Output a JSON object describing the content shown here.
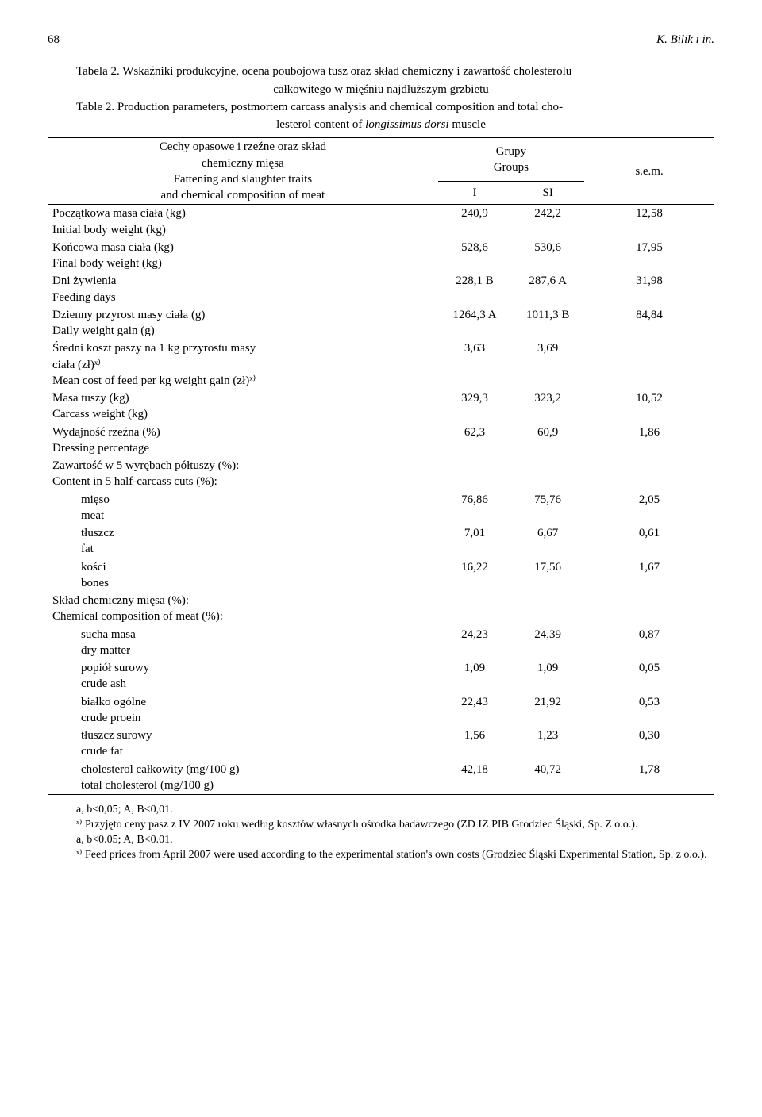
{
  "page_number": "68",
  "running_header": "K. Bilik i in.",
  "caption_pl_line1": "Tabela 2. Wskaźniki produkcyjne, ocena poubojowa tusz oraz skład chemiczny i zawartość cholesterolu",
  "caption_pl_line2": "całkowitego w mięśniu najdłuższym grzbietu",
  "caption_en_line1": "Table 2. Production parameters, postmortem carcass analysis and chemical composition and total cho-",
  "caption_en_line2": "lesterol content of longissimus dorsi muscle",
  "header": {
    "left_pl": "Cechy opasowe i rzeźne oraz skład",
    "left_pl2": "chemiczny mięsa",
    "left_en": "Fattening and slaughter traits",
    "left_en2": "and chemical composition of meat",
    "groups_pl": "Grupy",
    "groups_en": "Groups",
    "col_I": "I",
    "col_SI": "SI",
    "sem": "s.e.m."
  },
  "rows": [
    {
      "pl": "Początkowa masa ciała (kg)",
      "en": "Initial body weight (kg)",
      "i": "240,9",
      "si": "242,2",
      "sem": "12,58"
    },
    {
      "pl": "Końcowa masa ciała (kg)",
      "en": "Final body weight (kg)",
      "i": "528,6",
      "si": "530,6",
      "sem": "17,95"
    },
    {
      "pl": "Dni żywienia",
      "en": "Feeding days",
      "i": "228,1 B",
      "si": "287,6 A",
      "sem": "31,98"
    },
    {
      "pl": "Dzienny przyrost masy ciała (g)",
      "en": "Daily weight gain (g)",
      "i": "1264,3 A",
      "si": "1011,3 B",
      "sem": "84,84"
    },
    {
      "pl": "Średni koszt paszy na 1 kg  przyrostu masy",
      "pl2": "ciała (zł)ˣ⁾",
      "en": "Mean cost of feed per kg weight gain (zł)ˣ⁾",
      "i": "3,63",
      "si": "3,69",
      "sem": ""
    },
    {
      "pl": "Masa tuszy (kg)",
      "en": "Carcass weight (kg)",
      "i": "329,3",
      "si": "323,2",
      "sem": "10,52"
    },
    {
      "pl": "Wydajność rzeźna (%)",
      "en": "Dressing percentage",
      "i": "62,3",
      "si": "60,9",
      "sem": "1,86"
    },
    {
      "section_pl": "Zawartość w 5 wyrębach półtuszy (%):",
      "section_en": "Content in 5 half-carcass cuts (%):"
    },
    {
      "sub_pl": "mięso",
      "sub_en": "meat",
      "i": "76,86",
      "si": "75,76",
      "sem": "2,05"
    },
    {
      "sub_pl": "tłuszcz",
      "sub_en": "fat",
      "i": "7,01",
      "si": "6,67",
      "sem": "0,61"
    },
    {
      "sub_pl": "kości",
      "sub_en": "bones",
      "i": "16,22",
      "si": "17,56",
      "sem": "1,67"
    },
    {
      "section_pl": "Skład chemiczny mięsa (%):",
      "section_en": "Chemical composition of meat (%):"
    },
    {
      "sub_pl": "sucha masa",
      "sub_en": "dry matter",
      "i": "24,23",
      "si": "24,39",
      "sem": "0,87"
    },
    {
      "sub_pl": "popiół surowy",
      "sub_en": "crude ash",
      "i": "1,09",
      "si": "1,09",
      "sem": "0,05"
    },
    {
      "sub_pl": "białko ogólne",
      "sub_en": "crude proein",
      "i": "22,43",
      "si": "21,92",
      "sem": "0,53"
    },
    {
      "sub_pl": "tłuszcz surowy",
      "sub_en": "crude fat",
      "i": "1,56",
      "si": "1,23",
      "sem": "0,30"
    },
    {
      "sub_pl": "cholesterol całkowity (mg/100 g)",
      "sub_en": "total cholesterol (mg/100 g)",
      "i": "42,18",
      "si": "40,72",
      "sem": "1,78"
    }
  ],
  "notes": {
    "n1": "a, b<0,05; A, B<0,01.",
    "n2": "ˣ⁾ Przyjęto ceny pasz z IV 2007 roku według kosztów własnych ośrodka badawczego (ZD IZ PIB Grodziec Śląski, Sp. Z o.o.).",
    "n3": "a, b<0.05; A, B<0.01.",
    "n4": "ˣ⁾ Feed prices from April 2007 were used according to the experimental station's own costs (Grodziec Śląski Experimental Station, Sp. z o.o.)."
  }
}
